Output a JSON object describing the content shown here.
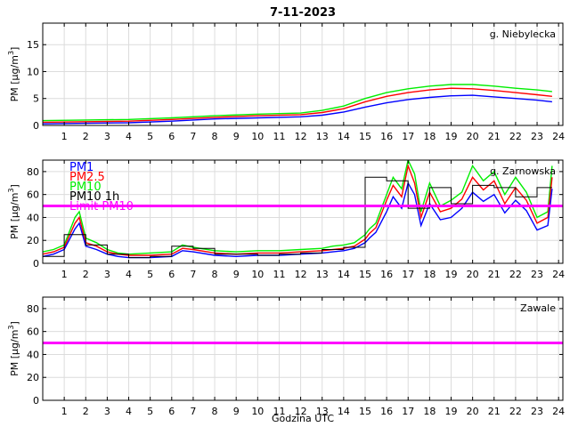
{
  "chart_data": {
    "title": "7-11-2023",
    "xlabel": "Godzina UTC",
    "ylabel_html": "PM [µg/m3]",
    "x_ticks": [
      1,
      2,
      3,
      4,
      5,
      6,
      7,
      8,
      9,
      10,
      11,
      12,
      13,
      14,
      15,
      16,
      17,
      18,
      19,
      20,
      21,
      22,
      23,
      24
    ],
    "xlim": [
      0,
      24.2
    ],
    "colors": {
      "PM1": "#0000ff",
      "PM2.5": "#ff0000",
      "PM10": "#00ee00",
      "PM10 1h": "#000000",
      "Limit PM10": "#ff00ff"
    },
    "panels": [
      {
        "site": "g. Niebylecka",
        "type": "line",
        "ylim": [
          0,
          19
        ],
        "y_ticks": [
          0,
          5,
          10,
          15
        ],
        "limit": null,
        "legend": [],
        "series": [
          {
            "name": "PM10",
            "x": [
              0,
              2,
              4,
              6,
              8,
              10,
              12,
              13,
              14,
              15,
              16,
              17,
              18,
              19,
              20,
              21,
              22,
              23,
              23.7
            ],
            "values": [
              0.9,
              1.0,
              1.1,
              1.4,
              1.8,
              2.1,
              2.3,
              2.8,
              3.6,
              5.0,
              6.1,
              6.8,
              7.3,
              7.6,
              7.6,
              7.3,
              6.9,
              6.6,
              6.3
            ]
          },
          {
            "name": "PM2.5",
            "x": [
              0,
              2,
              4,
              6,
              8,
              10,
              12,
              13,
              14,
              15,
              16,
              17,
              18,
              19,
              20,
              21,
              22,
              23,
              23.7
            ],
            "values": [
              0.6,
              0.7,
              0.8,
              1.1,
              1.5,
              1.8,
              2.0,
              2.4,
              3.1,
              4.4,
              5.4,
              6.1,
              6.6,
              6.9,
              6.8,
              6.5,
              6.1,
              5.7,
              5.4
            ]
          },
          {
            "name": "PM1",
            "x": [
              0,
              2,
              4,
              6,
              8,
              10,
              12,
              13,
              14,
              15,
              16,
              17,
              18,
              19,
              20,
              21,
              22,
              23,
              23.7
            ],
            "values": [
              0.3,
              0.4,
              0.5,
              0.8,
              1.2,
              1.4,
              1.6,
              1.9,
              2.5,
              3.4,
              4.2,
              4.8,
              5.2,
              5.5,
              5.6,
              5.3,
              5.0,
              4.7,
              4.4
            ]
          }
        ]
      },
      {
        "site": "g. Zarnowska",
        "type": "line",
        "ylim": [
          0,
          90
        ],
        "y_ticks": [
          0,
          20,
          40,
          60,
          80
        ],
        "limit": 50,
        "legend": [
          "PM1",
          "PM2.5",
          "PM10",
          "PM10 1h",
          "Limit PM10"
        ],
        "series": [
          {
            "name": "PM10",
            "x": [
              0,
              0.5,
              1,
              1.5,
              1.7,
              2,
              2.5,
              3,
              3.5,
              4,
              5,
              6,
              6.5,
              7,
              8,
              9,
              10,
              11,
              12,
              13,
              13.5,
              14,
              14.5,
              15,
              15.2,
              15.5,
              16,
              16.3,
              16.7,
              17,
              17.3,
              17.6,
              18,
              18.5,
              19,
              19.5,
              20,
              20.5,
              21,
              21.5,
              22,
              22.5,
              23,
              23.5,
              23.7
            ],
            "values": [
              10,
              12,
              16,
              40,
              45,
              22,
              18,
              12,
              9,
              8,
              9,
              10,
              16,
              14,
              11,
              10,
              11,
              11,
              12,
              13,
              15,
              16,
              18,
              25,
              30,
              35,
              60,
              75,
              65,
              90,
              78,
              45,
              70,
              50,
              55,
              62,
              85,
              72,
              80,
              60,
              75,
              62,
              40,
              45,
              85
            ]
          },
          {
            "name": "PM2.5",
            "x": [
              0,
              0.5,
              1,
              1.5,
              1.7,
              2,
              2.5,
              3,
              3.5,
              4,
              5,
              6,
              6.5,
              7,
              8,
              9,
              10,
              11,
              12,
              13,
              13.5,
              14,
              14.5,
              15,
              15.2,
              15.5,
              16,
              16.3,
              16.7,
              17,
              17.3,
              17.6,
              18,
              18.5,
              19,
              19.5,
              20,
              20.5,
              21,
              21.5,
              22,
              22.5,
              23,
              23.5,
              23.7
            ],
            "values": [
              8,
              10,
              14,
              35,
              40,
              18,
              15,
              10,
              8,
              7,
              7,
              8,
              13,
              12,
              9,
              8,
              9,
              9,
              10,
              11,
              12,
              13,
              15,
              21,
              26,
              31,
              55,
              68,
              58,
              85,
              70,
              40,
              62,
              45,
              48,
              56,
              75,
              64,
              72,
              52,
              66,
              55,
              35,
              40,
              75
            ]
          },
          {
            "name": "PM1",
            "x": [
              0,
              0.5,
              1,
              1.5,
              1.7,
              2,
              2.5,
              3,
              3.5,
              4,
              5,
              6,
              6.5,
              7,
              8,
              9,
              10,
              11,
              12,
              13,
              13.5,
              14,
              14.5,
              15,
              15.2,
              15.5,
              16,
              16.3,
              16.7,
              17,
              17.3,
              17.6,
              18,
              18.5,
              19,
              19.5,
              20,
              20.5,
              21,
              21.5,
              22,
              22.5,
              23,
              23.5,
              23.7
            ],
            "values": [
              6,
              8,
              12,
              30,
              35,
              15,
              12,
              8,
              6,
              5,
              5,
              6,
              11,
              10,
              7,
              6,
              7,
              7,
              8,
              9,
              10,
              11,
              13,
              18,
              22,
              27,
              45,
              58,
              48,
              70,
              60,
              33,
              52,
              38,
              40,
              48,
              62,
              54,
              60,
              44,
              55,
              46,
              29,
              33,
              65
            ]
          },
          {
            "name": "PM10 1h",
            "step": true,
            "x": [
              0,
              1,
              2,
              3,
              4,
              5,
              6,
              7,
              8,
              9,
              10,
              11,
              12,
              13,
              14,
              15,
              16,
              17,
              18,
              19,
              20,
              21,
              22,
              23,
              23.7
            ],
            "values": [
              6,
              25,
              16,
              8,
              5,
              6,
              15,
              13,
              8,
              8,
              7,
              8,
              9,
              12,
              14,
              75,
              72,
              48,
              66,
              52,
              68,
              66,
              58,
              66,
              66
            ]
          }
        ]
      },
      {
        "site": "Zawale",
        "type": "line",
        "ylim": [
          0,
          90
        ],
        "y_ticks": [
          0,
          20,
          40,
          60,
          80
        ],
        "limit": 50,
        "legend": [],
        "series": []
      }
    ]
  }
}
